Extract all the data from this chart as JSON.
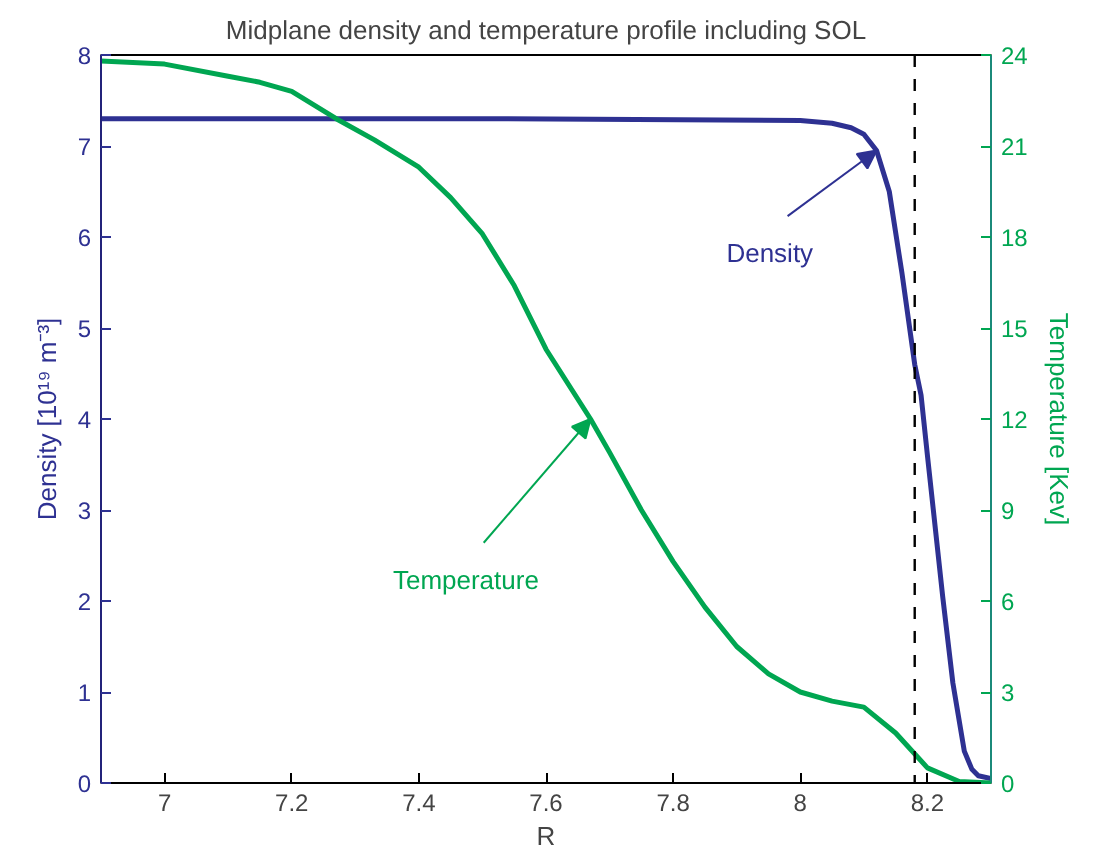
{
  "chart_data": {
    "type": "line",
    "title": "Midplane density and temperature profile including SOL",
    "xlabel": "R",
    "ylabel": "Density [10¹⁹ m⁻³]",
    "y2label": "Temperature [Kev]",
    "xlim": [
      6.9,
      8.3
    ],
    "xticks": [
      7,
      7.2,
      7.4,
      7.6,
      7.8,
      8,
      8.2
    ],
    "ylim": [
      0,
      8
    ],
    "yticks": [
      0,
      1,
      2,
      3,
      4,
      5,
      6,
      7,
      8
    ],
    "y2lim": [
      0,
      24
    ],
    "y2ticks": [
      0,
      3,
      6,
      9,
      12,
      15,
      18,
      21,
      24
    ],
    "grid": false,
    "line_style": "solid",
    "marker": "none",
    "series": [
      {
        "color": "#2e3192",
        "x": [
          6.9,
          7.5,
          8.0,
          8.05,
          8.08,
          8.1,
          8.12,
          8.14,
          8.16,
          8.18,
          8.19,
          8.2,
          8.224,
          8.24,
          8.258,
          8.27,
          8.28,
          8.3
        ],
        "values": [
          7.3,
          7.3,
          7.28,
          7.25,
          7.2,
          7.13,
          6.95,
          6.5,
          5.6,
          4.6,
          4.26,
          3.6,
          2.05,
          1.1,
          0.35,
          0.15,
          0.08,
          0.05
        ]
      },
      {
        "color": "#00a651",
        "axis": "y2",
        "x": [
          6.9,
          7.0,
          7.1,
          7.15,
          7.2,
          7.27,
          7.33,
          7.4,
          7.45,
          7.5,
          7.55,
          7.6,
          7.67,
          7.7,
          7.75,
          7.8,
          7.85,
          7.9,
          7.95,
          8.0,
          8.05,
          8.1,
          8.15,
          8.2,
          8.25,
          8.3
        ],
        "values": [
          23.8,
          23.7,
          23.3,
          23.1,
          22.8,
          21.9,
          21.2,
          20.3,
          19.3,
          18.1,
          16.4,
          14.3,
          12,
          10.9,
          9.0,
          7.3,
          5.8,
          4.5,
          3.6,
          3.0,
          2.7,
          2.5,
          1.65,
          0.5,
          0.05,
          0
        ]
      }
    ],
    "ref_lines": [
      {
        "axis": "x",
        "value": 8.18,
        "color": "#000000",
        "line_style": "dashed"
      }
    ],
    "annotations": [
      {
        "text": "Density",
        "x": 8.12,
        "y": 6.95
      },
      {
        "text": "Temperature",
        "x": 7.67,
        "y": 4.0
      }
    ]
  }
}
